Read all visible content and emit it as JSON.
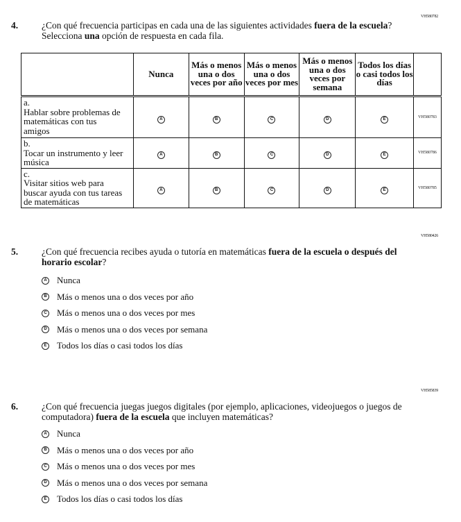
{
  "q4": {
    "code": "VH580782",
    "number": "4.",
    "text_pre": "¿Con qué frecuencia participas en cada una de las siguientes actividades ",
    "text_bold1": "fuera de la escuela",
    "text_mid": "? Selecciona ",
    "text_bold2": "una",
    "text_post": " opción de respuesta en cada fila.",
    "columns": [
      "Nunca",
      "Más o menos una o dos veces por año",
      "Más o menos una o dos veces por mes",
      "Más o menos una o dos veces por semana",
      "Todos los días o casi todos los días"
    ],
    "bubbles": [
      "A",
      "B",
      "C",
      "D",
      "E"
    ],
    "rows": [
      {
        "letter": "a.",
        "text": "Hablar sobre problemas de matemáticas con tus amigos",
        "code": "VH580783"
      },
      {
        "letter": "b.",
        "text": "Tocar un instrumento y leer música",
        "code": "VH580786"
      },
      {
        "letter": "c.",
        "text": "Visitar sitios web para buscar ayuda con tus tareas de matemáticas",
        "code": "VH580785"
      }
    ]
  },
  "q5": {
    "code": "VH580426",
    "number": "5.",
    "text_pre": "¿Con qué frecuencia recibes ayuda o tutoría en matemáticas ",
    "text_bold": "fuera de la escuela o después del horario escolar",
    "text_post": "?",
    "options": [
      {
        "b": "A",
        "t": "Nunca"
      },
      {
        "b": "B",
        "t": "Más o menos una o dos veces por año"
      },
      {
        "b": "C",
        "t": "Más o menos una o dos veces por mes"
      },
      {
        "b": "D",
        "t": "Más o menos una o dos veces por semana"
      },
      {
        "b": "E",
        "t": "Todos los días o casi todos los días"
      }
    ]
  },
  "q6": {
    "code": "VH585839",
    "number": "6.",
    "text_pre": "¿Con qué frecuencia juegas juegos digitales (por ejemplo, aplicaciones, videojuegos o juegos de computadora) ",
    "text_bold": "fuera de la escuela",
    "text_post": " que incluyen matemáticas?",
    "options": [
      {
        "b": "A",
        "t": "Nunca"
      },
      {
        "b": "B",
        "t": "Más o menos una o dos veces por año"
      },
      {
        "b": "C",
        "t": "Más o menos una o dos veces por mes"
      },
      {
        "b": "D",
        "t": "Más o menos una o dos veces por semana"
      },
      {
        "b": "E",
        "t": "Todos los días o casi todos los días"
      }
    ]
  }
}
